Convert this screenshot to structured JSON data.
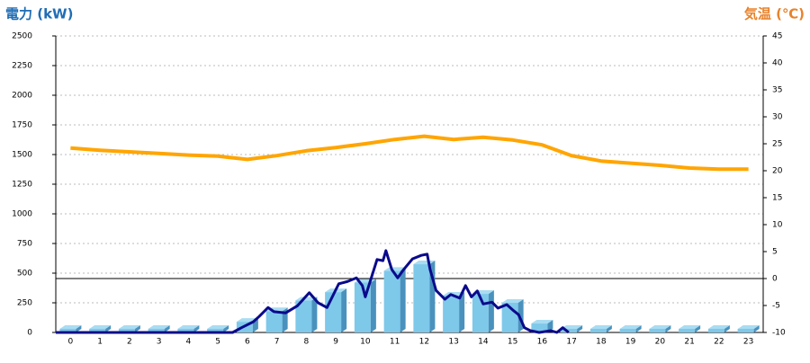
{
  "chart_data": {
    "type": "bar",
    "y_label": "電力 (kW)",
    "y2_label": "気温 (℃)",
    "categories": [
      "0",
      "1",
      "2",
      "3",
      "4",
      "5",
      "6",
      "7",
      "8",
      "9",
      "10",
      "11",
      "12",
      "13",
      "14",
      "15",
      "16",
      "17",
      "18",
      "19",
      "20",
      "21",
      "22",
      "23"
    ],
    "ylim": [
      0,
      2500
    ],
    "yticks": [
      0,
      250,
      500,
      750,
      1000,
      1250,
      1500,
      1750,
      2000,
      2250,
      2500
    ],
    "y2lim": [
      -10,
      45
    ],
    "y2ticks": [
      -10,
      -5,
      0,
      5,
      10,
      15,
      20,
      25,
      30,
      35,
      40,
      45
    ],
    "grid": true,
    "series": [
      {
        "type": "bar",
        "color": "#7ec8ea",
        "values": [
          0,
          0,
          0,
          0,
          0,
          0,
          60,
          150,
          240,
          310,
          390,
          490,
          545,
          280,
          295,
          220,
          45,
          0,
          0,
          0,
          0,
          0,
          0,
          0
        ]
      },
      {
        "type": "line",
        "color": "#0a0a8c",
        "x": [
          -0.5,
          5.5,
          5.8,
          6.2,
          6.4,
          6.7,
          6.9,
          7.3,
          7.7,
          8.1,
          8.4,
          8.7,
          9.1,
          9.4,
          9.7,
          9.9,
          10.0,
          10.4,
          10.6,
          10.7,
          10.9,
          11.1,
          11.3,
          11.6,
          11.9,
          12.1,
          12.2,
          12.4,
          12.7,
          12.9,
          13.2,
          13.4,
          13.6,
          13.8,
          14.0,
          14.3,
          14.5,
          14.8,
          15.0,
          15.2,
          15.4,
          15.6,
          15.9,
          16.3,
          16.5,
          16.7,
          16.9
        ],
        "values": [
          0,
          0,
          40,
          90,
          135,
          210,
          175,
          165,
          225,
          335,
          250,
          210,
          410,
          430,
          460,
          395,
          300,
          615,
          605,
          690,
          530,
          460,
          530,
          620,
          650,
          660,
          530,
          355,
          280,
          320,
          290,
          395,
          300,
          350,
          240,
          255,
          205,
          235,
          190,
          150,
          40,
          15,
          0,
          15,
          0,
          40,
          0
        ]
      },
      {
        "type": "line",
        "color": "#ffa500",
        "axis": "y2",
        "values": [
          24.2,
          23.8,
          23.5,
          23.2,
          22.9,
          22.7,
          22.1,
          22.8,
          23.7,
          24.3,
          25.0,
          25.8,
          26.4,
          25.8,
          26.2,
          25.7,
          24.8,
          22.8,
          21.8,
          21.4,
          21.0,
          20.5,
          20.3,
          20.3
        ]
      }
    ]
  }
}
